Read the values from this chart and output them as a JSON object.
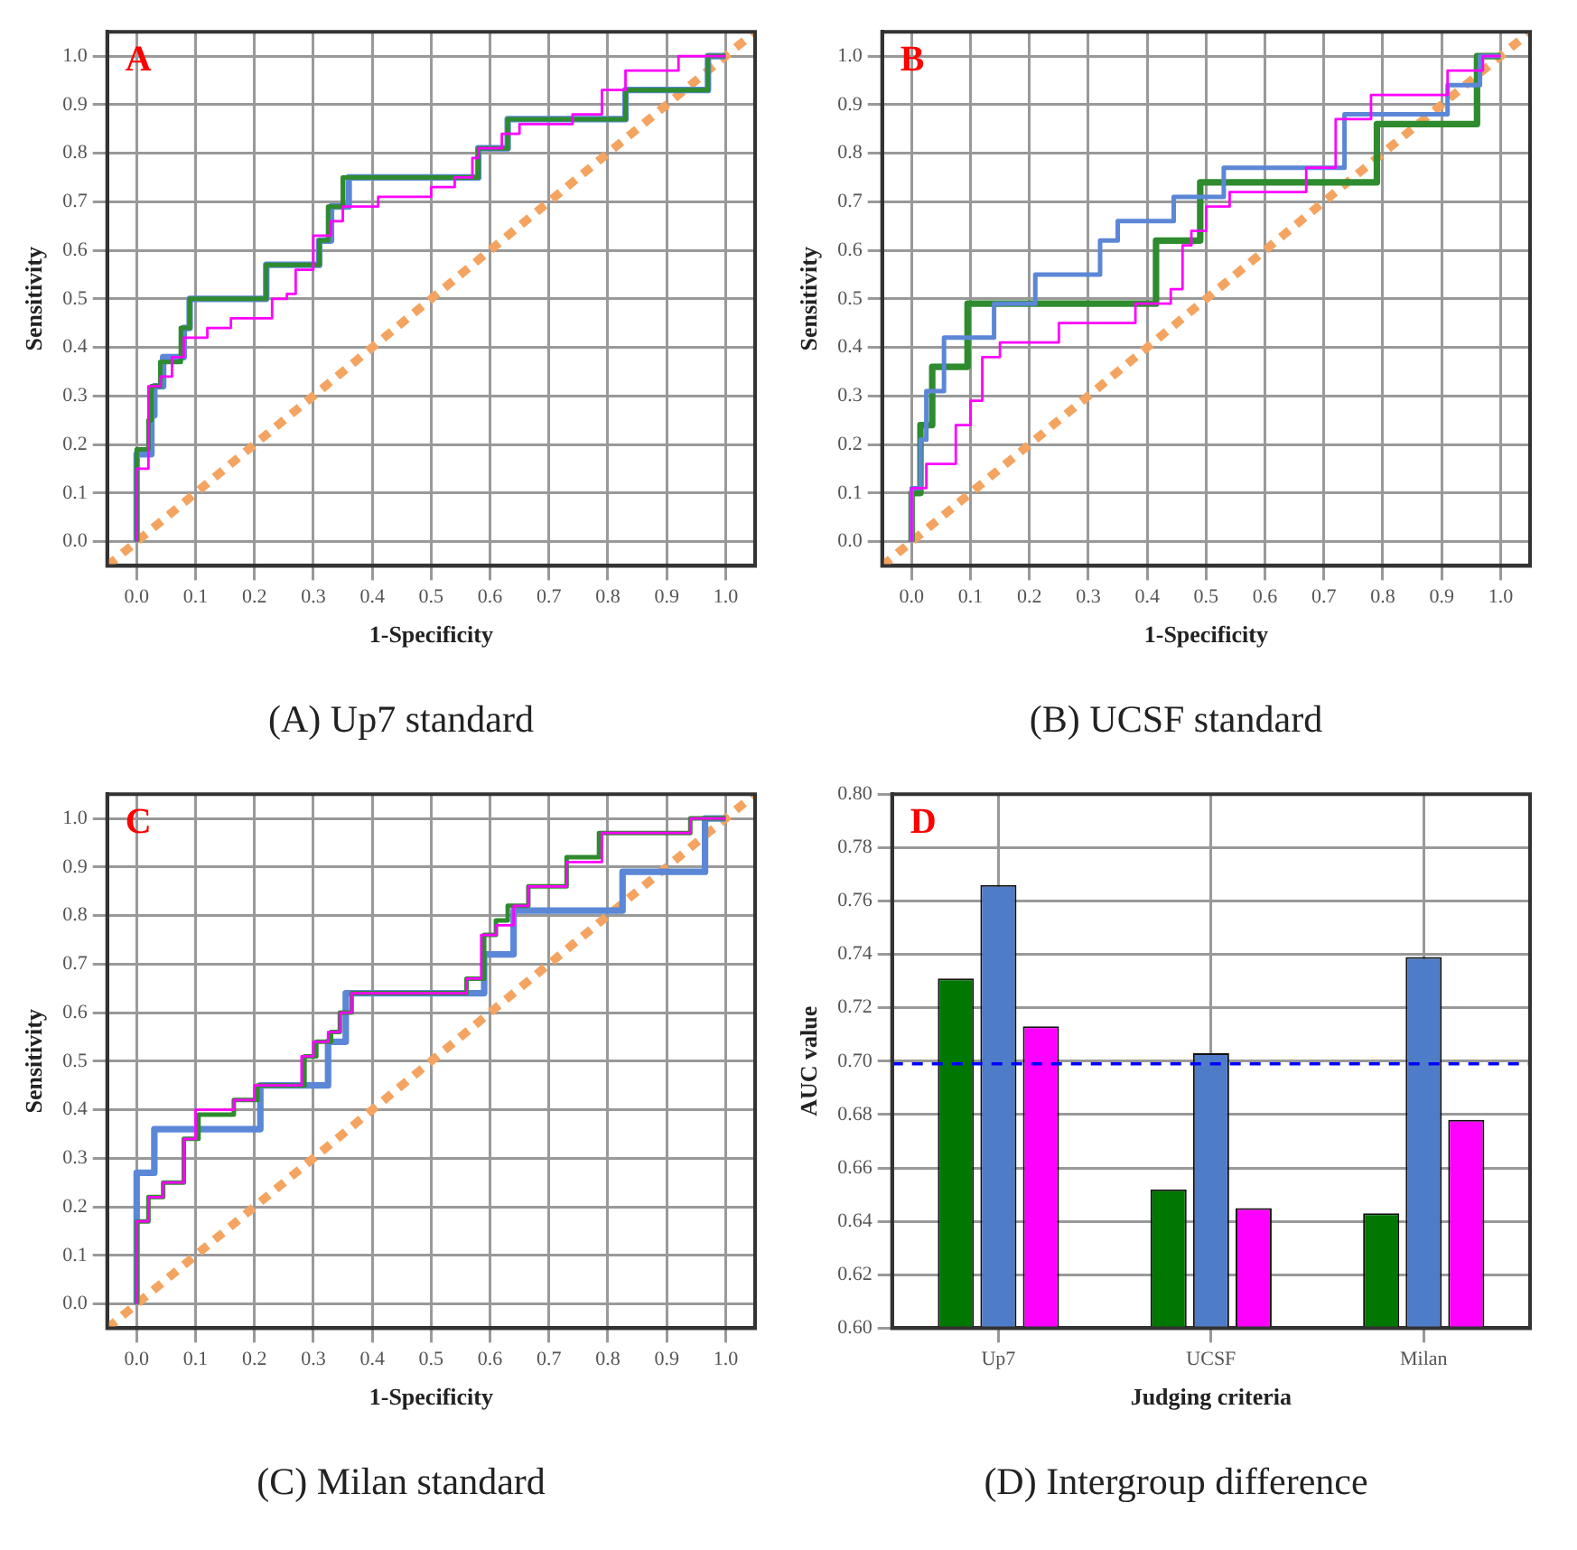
{
  "chart_data": [
    {
      "type": "step",
      "title": "(A) Up7 standard",
      "annotations": [
        "A"
      ],
      "xlabel": "1-Specificity",
      "ylabel": "Sensitivity",
      "xlim": [
        -0.05,
        1.05
      ],
      "ylim": [
        -0.05,
        1.05
      ],
      "xticks": [
        {
          "value": 0,
          "label": "0.0"
        },
        {
          "value": 0.1,
          "label": "0.1"
        },
        {
          "value": 0.2,
          "label": "0.2"
        },
        {
          "value": 0.3,
          "label": "0.3"
        },
        {
          "value": 0.4,
          "label": "0.4"
        },
        {
          "value": 0.5,
          "label": "0.5"
        },
        {
          "value": 0.6,
          "label": "0.6"
        },
        {
          "value": 0.7,
          "label": "0.7"
        },
        {
          "value": 0.8,
          "label": "0.8"
        },
        {
          "value": 0.9,
          "label": "0.9"
        },
        {
          "value": 1,
          "label": "1.0"
        }
      ],
      "yticks": [
        {
          "value": 0,
          "label": "0.0"
        },
        {
          "value": 0.1,
          "label": "0.1"
        },
        {
          "value": 0.2,
          "label": "0.2"
        },
        {
          "value": 0.3,
          "label": "0.3"
        },
        {
          "value": 0.4,
          "label": "0.4"
        },
        {
          "value": 0.5,
          "label": "0.5"
        },
        {
          "value": 0.6,
          "label": "0.6"
        },
        {
          "value": 0.7,
          "label": "0.7"
        },
        {
          "value": 0.8,
          "label": "0.8"
        },
        {
          "value": 0.9,
          "label": "0.9"
        },
        {
          "value": 1,
          "label": "1.0"
        }
      ],
      "grid": true,
      "series": [
        {
          "type": "line",
          "color": "#f4a460",
          "line_style": "dashed",
          "x": [
            -0.05,
            1.05
          ],
          "values": [
            -0.05,
            1.05
          ]
        },
        {
          "color": "#5b87d6",
          "x": [
            0,
            0,
            0.025,
            0.03,
            0.045,
            0.08,
            0.09,
            0.22,
            0.31,
            0.33,
            0.36,
            0.58,
            0.63,
            0.83,
            0.97,
            1
          ],
          "values": [
            0,
            0.18,
            0.26,
            0.32,
            0.38,
            0.44,
            0.5,
            0.57,
            0.62,
            0.69,
            0.75,
            0.81,
            0.87,
            0.93,
            1,
            1
          ]
        },
        {
          "color": "#2e8b2e",
          "x": [
            0,
            0,
            0.02,
            0.025,
            0.04,
            0.075,
            0.09,
            0.22,
            0.31,
            0.325,
            0.35,
            0.58,
            0.63,
            0.83,
            0.97,
            1
          ],
          "values": [
            0,
            0.19,
            0.25,
            0.32,
            0.37,
            0.44,
            0.5,
            0.57,
            0.62,
            0.69,
            0.75,
            0.81,
            0.87,
            0.93,
            1,
            1
          ]
        },
        {
          "color": "#ff00ff",
          "x": [
            0,
            0,
            0.02,
            0.04,
            0.06,
            0.08,
            0.12,
            0.16,
            0.23,
            0.255,
            0.27,
            0.3,
            0.33,
            0.35,
            0.41,
            0.5,
            0.54,
            0.57,
            0.58,
            0.62,
            0.65,
            0.74,
            0.79,
            0.83,
            0.92,
            1
          ],
          "values": [
            0,
            0.15,
            0.32,
            0.34,
            0.38,
            0.42,
            0.44,
            0.46,
            0.5,
            0.51,
            0.56,
            0.63,
            0.66,
            0.69,
            0.71,
            0.73,
            0.75,
            0.79,
            0.81,
            0.84,
            0.86,
            0.88,
            0.93,
            0.97,
            1,
            1
          ]
        }
      ]
    },
    {
      "type": "step",
      "title": "(B) UCSF standard",
      "annotations": [
        "B"
      ],
      "xlabel": "1-Specificity",
      "ylabel": "Sensitivity",
      "xlim": [
        -0.05,
        1.05
      ],
      "ylim": [
        -0.05,
        1.05
      ],
      "xticks": [
        {
          "value": 0,
          "label": "0.0"
        },
        {
          "value": 0.1,
          "label": "0.1"
        },
        {
          "value": 0.2,
          "label": "0.2"
        },
        {
          "value": 0.3,
          "label": "0.3"
        },
        {
          "value": 0.4,
          "label": "0.4"
        },
        {
          "value": 0.5,
          "label": "0.5"
        },
        {
          "value": 0.6,
          "label": "0.6"
        },
        {
          "value": 0.7,
          "label": "0.7"
        },
        {
          "value": 0.8,
          "label": "0.8"
        },
        {
          "value": 0.9,
          "label": "0.9"
        },
        {
          "value": 1,
          "label": "1.0"
        }
      ],
      "yticks": [
        {
          "value": 0,
          "label": "0.0"
        },
        {
          "value": 0.1,
          "label": "0.1"
        },
        {
          "value": 0.2,
          "label": "0.2"
        },
        {
          "value": 0.3,
          "label": "0.3"
        },
        {
          "value": 0.4,
          "label": "0.4"
        },
        {
          "value": 0.5,
          "label": "0.5"
        },
        {
          "value": 0.6,
          "label": "0.6"
        },
        {
          "value": 0.7,
          "label": "0.7"
        },
        {
          "value": 0.8,
          "label": "0.8"
        },
        {
          "value": 0.9,
          "label": "0.9"
        },
        {
          "value": 1,
          "label": "1.0"
        }
      ],
      "grid": true,
      "series": [
        {
          "type": "line",
          "color": "#f4a460",
          "line_style": "dashed",
          "x": [
            -0.05,
            1.05
          ],
          "values": [
            -0.05,
            1.05
          ]
        },
        {
          "color": "#2e8b2e",
          "x": [
            0,
            0,
            0.015,
            0.035,
            0.095,
            0.415,
            0.49,
            0.79,
            0.96,
            1
          ],
          "values": [
            0,
            0.1,
            0.24,
            0.36,
            0.49,
            0.62,
            0.74,
            0.86,
            1,
            1
          ]
        },
        {
          "color": "#5b87d6",
          "x": [
            0,
            0,
            0.015,
            0.025,
            0.055,
            0.14,
            0.21,
            0.32,
            0.35,
            0.445,
            0.53,
            0.735,
            0.91,
            0.965,
            1
          ],
          "values": [
            0,
            0.11,
            0.21,
            0.31,
            0.42,
            0.49,
            0.55,
            0.62,
            0.66,
            0.71,
            0.77,
            0.88,
            0.94,
            1,
            1
          ]
        },
        {
          "color": "#ff00ff",
          "x": [
            0,
            0,
            0.025,
            0.075,
            0.1,
            0.12,
            0.15,
            0.25,
            0.38,
            0.44,
            0.46,
            0.475,
            0.5,
            0.54,
            0.67,
            0.72,
            0.78,
            0.91,
            0.97,
            1
          ],
          "values": [
            0,
            0.11,
            0.16,
            0.24,
            0.29,
            0.38,
            0.41,
            0.45,
            0.49,
            0.52,
            0.61,
            0.64,
            0.69,
            0.72,
            0.77,
            0.87,
            0.92,
            0.97,
            1,
            1
          ]
        }
      ]
    },
    {
      "type": "step",
      "title": "(C) Milan standard",
      "annotations": [
        "C"
      ],
      "xlabel": "1-Specificity",
      "ylabel": "Sensitivity",
      "xlim": [
        -0.05,
        1.05
      ],
      "ylim": [
        -0.05,
        1.05
      ],
      "xticks": [
        {
          "value": 0,
          "label": "0.0"
        },
        {
          "value": 0.1,
          "label": "0.1"
        },
        {
          "value": 0.2,
          "label": "0.2"
        },
        {
          "value": 0.3,
          "label": "0.3"
        },
        {
          "value": 0.4,
          "label": "0.4"
        },
        {
          "value": 0.5,
          "label": "0.5"
        },
        {
          "value": 0.6,
          "label": "0.6"
        },
        {
          "value": 0.7,
          "label": "0.7"
        },
        {
          "value": 0.8,
          "label": "0.8"
        },
        {
          "value": 0.9,
          "label": "0.9"
        },
        {
          "value": 1,
          "label": "1.0"
        }
      ],
      "yticks": [
        {
          "value": 0,
          "label": "0.0"
        },
        {
          "value": 0.1,
          "label": "0.1"
        },
        {
          "value": 0.2,
          "label": "0.2"
        },
        {
          "value": 0.3,
          "label": "0.3"
        },
        {
          "value": 0.4,
          "label": "0.4"
        },
        {
          "value": 0.5,
          "label": "0.5"
        },
        {
          "value": 0.6,
          "label": "0.6"
        },
        {
          "value": 0.7,
          "label": "0.7"
        },
        {
          "value": 0.8,
          "label": "0.8"
        },
        {
          "value": 0.9,
          "label": "0.9"
        },
        {
          "value": 1,
          "label": "1.0"
        }
      ],
      "grid": true,
      "series": [
        {
          "type": "line",
          "color": "#f4a460",
          "line_style": "dashed",
          "x": [
            -0.05,
            1.05
          ],
          "values": [
            -0.05,
            1.05
          ]
        },
        {
          "color": "#5b87d6",
          "x": [
            0,
            0,
            0.03,
            0.21,
            0.325,
            0.355,
            0.59,
            0.64,
            0.825,
            0.965,
            1
          ],
          "values": [
            0,
            0.27,
            0.36,
            0.45,
            0.54,
            0.64,
            0.72,
            0.81,
            0.89,
            1,
            1
          ]
        },
        {
          "color": "#2e8b2e",
          "x": [
            0,
            0,
            0.02,
            0.045,
            0.08,
            0.105,
            0.165,
            0.205,
            0.285,
            0.305,
            0.33,
            0.345,
            0.365,
            0.56,
            0.59,
            0.61,
            0.63,
            0.665,
            0.73,
            0.785,
            0.94,
            1
          ],
          "values": [
            0,
            0.17,
            0.22,
            0.25,
            0.34,
            0.39,
            0.42,
            0.45,
            0.51,
            0.54,
            0.56,
            0.6,
            0.64,
            0.67,
            0.76,
            0.79,
            0.82,
            0.86,
            0.92,
            0.97,
            1,
            1
          ]
        },
        {
          "color": "#ff00ff",
          "x": [
            0,
            0,
            0.02,
            0.045,
            0.08,
            0.1,
            0.165,
            0.2,
            0.28,
            0.3,
            0.325,
            0.345,
            0.365,
            0.56,
            0.585,
            0.61,
            0.64,
            0.665,
            0.73,
            0.79,
            0.94,
            1
          ],
          "values": [
            0,
            0.17,
            0.22,
            0.25,
            0.34,
            0.4,
            0.42,
            0.45,
            0.51,
            0.54,
            0.56,
            0.6,
            0.64,
            0.67,
            0.76,
            0.78,
            0.82,
            0.86,
            0.91,
            0.97,
            1,
            1
          ]
        }
      ]
    },
    {
      "type": "bar",
      "title": "(D) Intergroup difference",
      "annotations": [
        "D"
      ],
      "xlabel": "Judging criteria",
      "ylabel": "AUC value",
      "categories": [
        "Up7",
        "UCSF",
        "Milan"
      ],
      "ylim": [
        0.6,
        0.8
      ],
      "yticks": [
        {
          "value": 0.6,
          "label": "0.60"
        },
        0.62,
        0.64,
        0.66,
        0.68,
        {
          "value": 0.7,
          "label": "0.70"
        },
        0.72,
        0.74,
        0.76,
        0.78,
        {
          "value": 0.8,
          "label": "0.80"
        }
      ],
      "grid": true,
      "ref_lines": [
        {
          "axis": "y",
          "value": 0.699,
          "color": "#0000ff",
          "line_style": "dashed"
        }
      ],
      "series": [
        {
          "color": "#007700",
          "values": [
            0.731,
            0.652,
            0.643
          ]
        },
        {
          "color": "#4f7cc8",
          "values": [
            0.766,
            0.703,
            0.739
          ]
        },
        {
          "color": "#ff00ff",
          "values": [
            0.713,
            0.645,
            0.678
          ]
        }
      ]
    }
  ]
}
